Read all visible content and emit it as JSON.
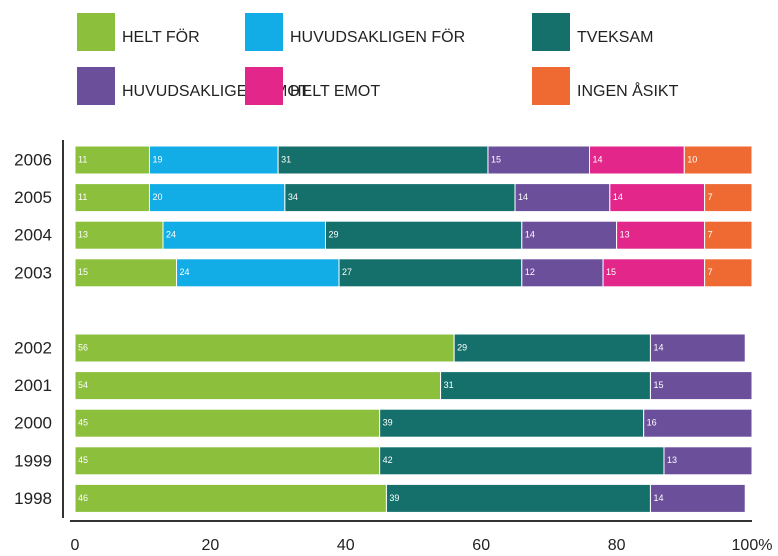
{
  "chart_data": {
    "type": "stacked-bar",
    "orientation": "horizontal",
    "categories": [
      "2006",
      "2005",
      "2004",
      "2003",
      null,
      "2002",
      "2001",
      "2000",
      "1999",
      "1998"
    ],
    "series": [
      {
        "name": "HELT FÖR",
        "color": "#8bbf3c",
        "values": [
          11,
          11,
          13,
          15,
          null,
          56,
          54,
          45,
          45,
          46
        ]
      },
      {
        "name": "HUVUDSAKLIGEN FÖR",
        "color": "#12ade6",
        "values": [
          19,
          20,
          24,
          24,
          null,
          null,
          null,
          null,
          null,
          null
        ]
      },
      {
        "name": "TVEKSAM",
        "color": "#15706c",
        "values": [
          31,
          34,
          29,
          27,
          null,
          29,
          31,
          39,
          42,
          39
        ]
      },
      {
        "name": "HUVUDSAKLIGEN EMOT",
        "color": "#6c4f9b",
        "values": [
          15,
          14,
          14,
          12,
          null,
          14,
          15,
          16,
          13,
          14
        ]
      },
      {
        "name": "HELT EMOT",
        "color": "#e2268a",
        "values": [
          14,
          14,
          13,
          15,
          null,
          null,
          null,
          null,
          null,
          null
        ]
      },
      {
        "name": "INGEN ÅSIKT",
        "color": "#ee6a32",
        "values": [
          10,
          7,
          7,
          7,
          null,
          null,
          null,
          null,
          null,
          null
        ]
      }
    ],
    "xlim": [
      0,
      100
    ],
    "xticks": [
      0,
      20,
      40,
      60,
      80,
      {
        "value": 100,
        "label": "100%"
      }
    ]
  }
}
